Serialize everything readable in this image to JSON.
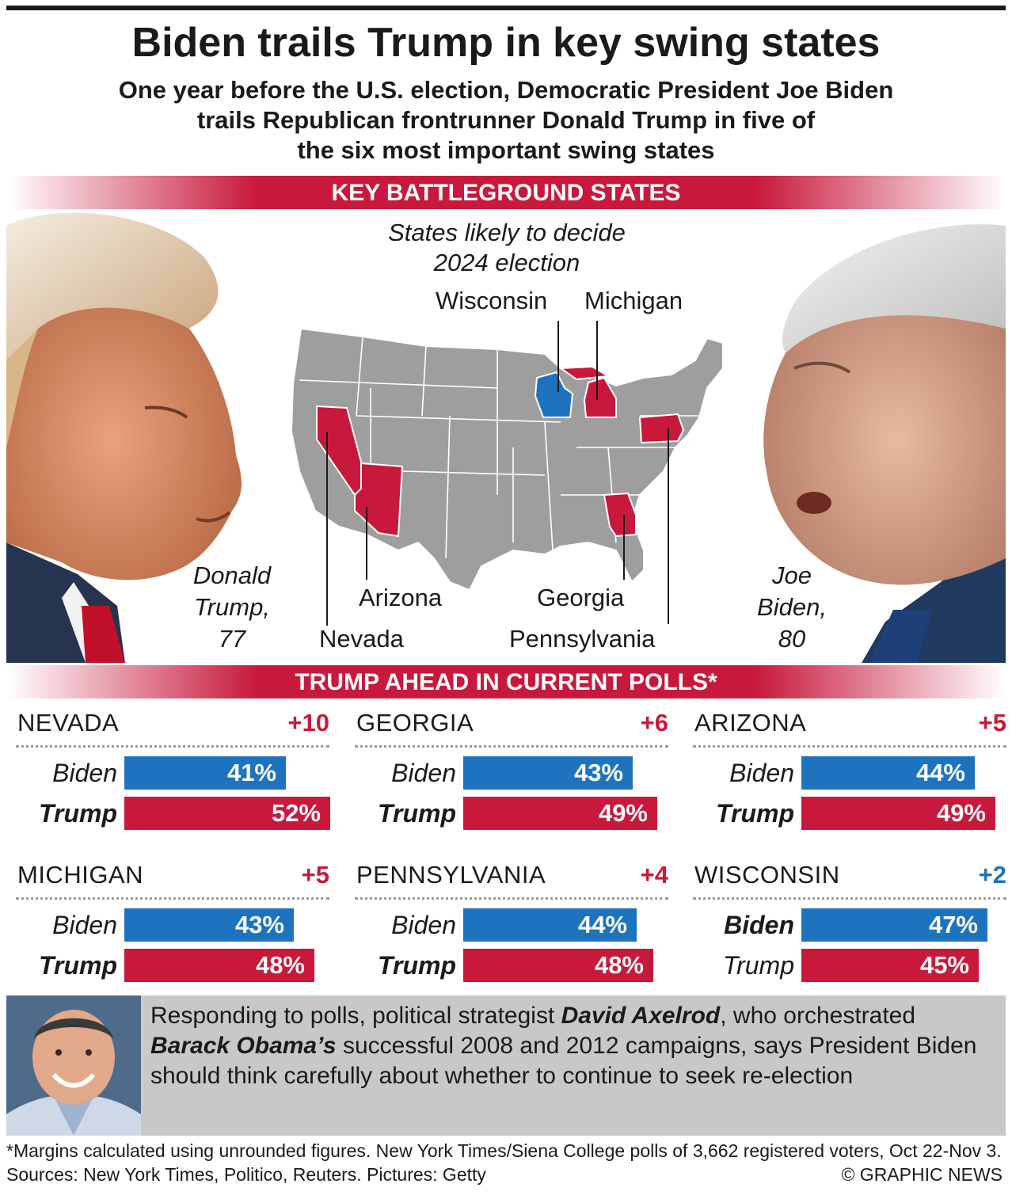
{
  "header": {
    "title": "Biden trails Trump in key swing states",
    "subtitle_lines": [
      "One year before the U.S. election, Democratic President Joe Biden",
      "trails Republican frontrunner Donald Trump in five of",
      "the six most important swing states"
    ]
  },
  "map_section": {
    "banner": "KEY BATTLEGROUND STATES",
    "subtitle_lines": [
      "States likely to decide",
      "2024 election"
    ],
    "labels": {
      "wisconsin": "Wisconsin",
      "michigan": "Michigan",
      "arizona": "Arizona",
      "nevada": "Nevada",
      "georgia": "Georgia",
      "pennsylvania": "Pennsylvania"
    },
    "trump_caption": [
      "Donald",
      "Trump,",
      "77"
    ],
    "biden_caption": [
      "Joe",
      "Biden,",
      "80"
    ],
    "colors": {
      "base": "#9e9e9e",
      "trump_lead": "#c8193c",
      "biden_lead": "#1e73be"
    },
    "state_leaders": {
      "Nevada": "Trump",
      "Arizona": "Trump",
      "Georgia": "Trump",
      "Michigan": "Trump",
      "Pennsylvania": "Trump",
      "Wisconsin": "Biden"
    }
  },
  "polls_banner": "TRUMP AHEAD IN CURRENT POLLS*",
  "chart_data": {
    "type": "bar",
    "orientation": "horizontal",
    "title": "TRUMP AHEAD IN CURRENT POLLS*",
    "unit": "%",
    "panels": [
      {
        "state": "NEVADA",
        "margin": "+10",
        "leader": "Trump",
        "series": [
          {
            "name": "Biden",
            "value": 41,
            "label": "41%"
          },
          {
            "name": "Trump",
            "value": 52,
            "label": "52%"
          }
        ]
      },
      {
        "state": "GEORGIA",
        "margin": "+6",
        "leader": "Trump",
        "series": [
          {
            "name": "Biden",
            "value": 43,
            "label": "43%"
          },
          {
            "name": "Trump",
            "value": 49,
            "label": "49%"
          }
        ]
      },
      {
        "state": "ARIZONA",
        "margin": "+5",
        "leader": "Trump",
        "series": [
          {
            "name": "Biden",
            "value": 44,
            "label": "44%"
          },
          {
            "name": "Trump",
            "value": 49,
            "label": "49%"
          }
        ]
      },
      {
        "state": "MICHIGAN",
        "margin": "+5",
        "leader": "Trump",
        "series": [
          {
            "name": "Biden",
            "value": 43,
            "label": "43%"
          },
          {
            "name": "Trump",
            "value": 48,
            "label": "48%"
          }
        ]
      },
      {
        "state": "PENNSYLVANIA",
        "margin": "+4",
        "leader": "Trump",
        "series": [
          {
            "name": "Biden",
            "value": 44,
            "label": "44%"
          },
          {
            "name": "Trump",
            "value": 48,
            "label": "48%"
          }
        ]
      },
      {
        "state": "WISCONSIN",
        "margin": "+2",
        "leader": "Biden",
        "series": [
          {
            "name": "Biden",
            "value": 47,
            "label": "47%"
          },
          {
            "name": "Trump",
            "value": 45,
            "label": "45%"
          }
        ]
      }
    ],
    "colors": {
      "Biden": "#1e73be",
      "Trump": "#c8193c"
    }
  },
  "quote": {
    "parts": [
      {
        "text": "Responding to polls, political strategist ",
        "em": false
      },
      {
        "text": "David Axelrod",
        "em": true
      },
      {
        "text": ", who orchestrated ",
        "em": false
      },
      {
        "text": "Barack Obama’s",
        "em": true
      },
      {
        "text": " successful 2008 and 2012 campaigns, says President Biden should think carefully about whether to continue to seek re-election",
        "em": false
      }
    ]
  },
  "footer": {
    "note": "*Margins calculated using unrounded figures. New York Times/Siena College polls of 3,662 registered voters, Oct 22-Nov 3. Sources: New York Times, Politico, Reuters. Pictures: Getty",
    "credit": "© GRAPHIC NEWS"
  }
}
